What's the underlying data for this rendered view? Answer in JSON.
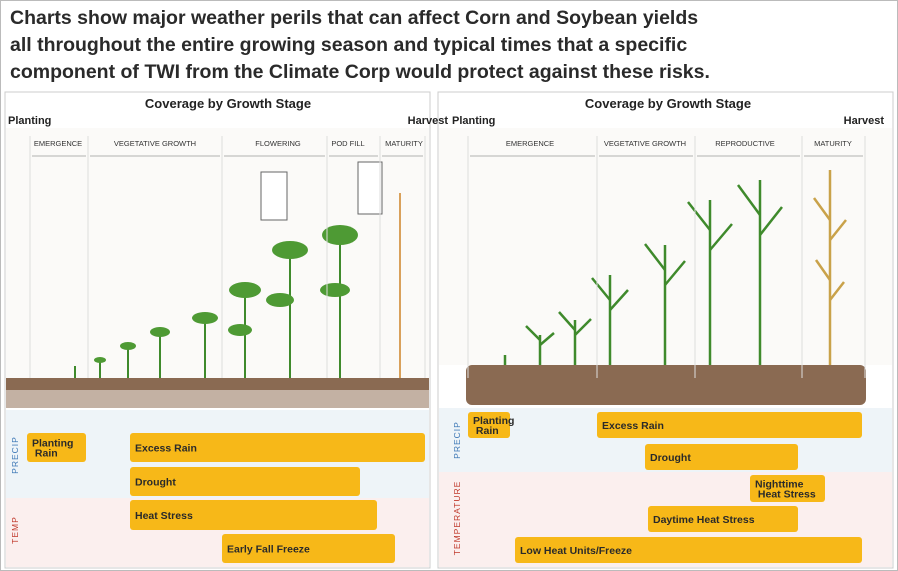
{
  "header": {
    "lines": [
      "Charts show major weather perils that can affect Corn and Soybean yields",
      "all throughout the entire growing season and typical times that a specific",
      "component of TWI from the Climate Corp would protect against these risks."
    ]
  },
  "panels": [
    {
      "title": "Coverage by Growth Stage",
      "start_label": "Planting",
      "end_label": "Harvest",
      "stages": [
        "EMERGENCE",
        "VEGETATIVE GROWTH",
        "FLOWERING",
        "POD FILL",
        "MATURITY"
      ],
      "groups": [
        {
          "label": "PRECIP",
          "risks": [
            "Planting Rain",
            "Excess Rain",
            "Drought"
          ]
        },
        {
          "label": "TEMP",
          "risks": [
            "Heat Stress",
            "Early Fall Freeze"
          ]
        }
      ]
    },
    {
      "title": "Coverage by Growth Stage",
      "start_label": "Planting",
      "end_label": "Harvest",
      "stages": [
        "EMERGENCE",
        "VEGETATIVE GROWTH",
        "REPRODUCTIVE",
        "MATURITY"
      ],
      "groups": [
        {
          "label": "PRECIP",
          "risks": [
            "Planting Rain",
            "Excess Rain",
            "Drought"
          ]
        },
        {
          "label": "TEMPERATURE",
          "risks": [
            "Nighttime Heat Stress",
            "Daytime Heat Stress",
            "Low Heat Units/Freeze"
          ]
        }
      ]
    }
  ]
}
